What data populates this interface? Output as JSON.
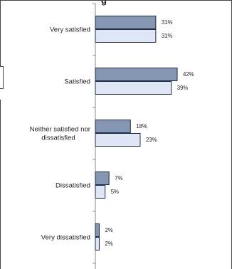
{
  "chart_data": {
    "type": "bar",
    "orientation": "horizontal",
    "title_partial": "g",
    "categories": [
      "Very satisfied",
      "Satisfied",
      "Neither satisfied nor dissatisfied",
      "Dissatisfied",
      "Very dissatisfied"
    ],
    "category_lines": [
      [
        "Very satisfied"
      ],
      [
        "Satisfied"
      ],
      [
        "Neither satisfied nor",
        "dissatisfied"
      ],
      [
        "Dissatisfied"
      ],
      [
        "Very dissatisfied"
      ]
    ],
    "series": [
      {
        "values": [
          31,
          42,
          18,
          7,
          2
        ],
        "labels": [
          "31%",
          "42%",
          "18%",
          "7%",
          "2%"
        ],
        "color": "#8596b3"
      },
      {
        "values": [
          31,
          39,
          23,
          5,
          2
        ],
        "labels": [
          "31%",
          "39%",
          "23%",
          "5%",
          "2%"
        ],
        "color": "#dfe6f6"
      }
    ],
    "xlim": [
      0,
      45
    ],
    "grid": false,
    "legend": "none",
    "bar_edge_color": "#1f2a44",
    "axis_color": "#888888"
  }
}
